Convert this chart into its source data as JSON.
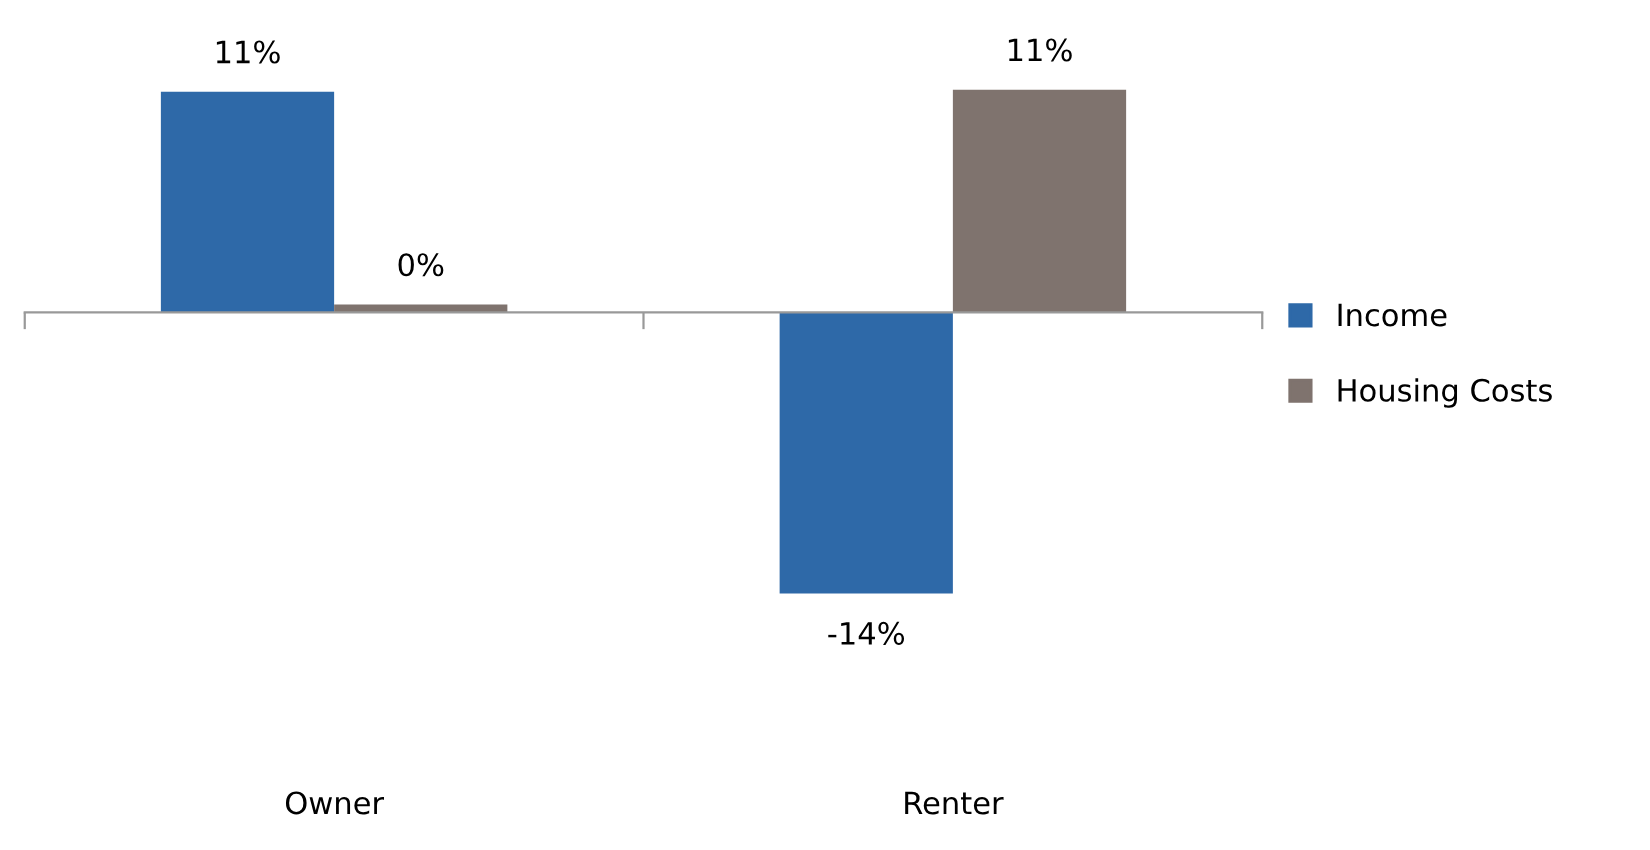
{
  "chart_data": {
    "type": "bar",
    "categories": [
      "Owner",
      "Renter"
    ],
    "series": [
      {
        "name": "Income",
        "color": "#2e69a8",
        "values": [
          11,
          -14
        ],
        "value_labels": [
          "11%",
          "-14%"
        ]
      },
      {
        "name": "Housing Costs",
        "color": "#7f736e",
        "values": [
          0.4,
          11.1
        ],
        "value_labels": [
          "0%",
          "11%"
        ]
      }
    ],
    "legend": "right",
    "grid": false
  }
}
